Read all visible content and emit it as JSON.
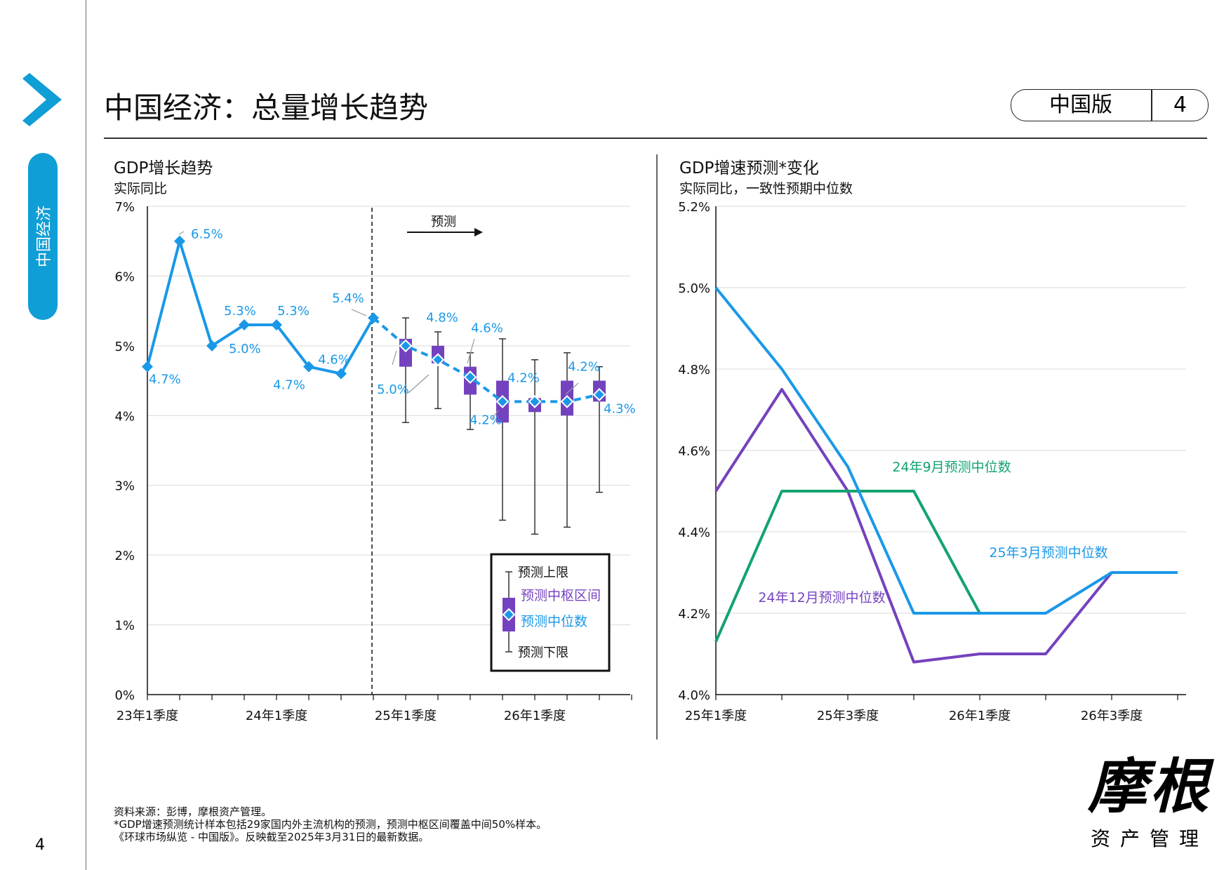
{
  "page": {
    "title": "中国经济：总量增长趋势",
    "section_tab": "中国经济",
    "edition": "中国版",
    "page_label": "4",
    "page_number": "4"
  },
  "footnotes": [
    "资料来源：彭博，摩根资产管理。",
    "*GDP增速预测统计样本包括29家国内外主流机构的预测，预测中枢区间覆盖中间50%样本。",
    "《环球市场纵览 - 中国版》。反映截至2025年3月31日的最新数据。"
  ],
  "logo": {
    "main": "摩根",
    "sub": "资产管理"
  },
  "colors": {
    "blue": "#1a98e8",
    "purple": "#7442be",
    "green": "#13a36f",
    "tab": "#0f9ed5"
  },
  "chart_data": [
    {
      "type": "line",
      "title": "GDP增长趋势",
      "subtitle": "实际同比",
      "x_tick_labels": [
        "23年1季度",
        "24年1季度",
        "25年1季度",
        "26年1季度"
      ],
      "y_tick_labels": [
        "0%",
        "1%",
        "2%",
        "3%",
        "4%",
        "5%",
        "6%",
        "7%"
      ],
      "ylim": [
        0,
        7
      ],
      "forecast_label": "预测",
      "actual": {
        "quarters": [
          "23Q1",
          "23Q2",
          "23Q3",
          "23Q4",
          "24Q1",
          "24Q2",
          "24Q3",
          "24Q4"
        ],
        "values": [
          4.7,
          6.5,
          5.0,
          5.3,
          5.3,
          4.7,
          4.6,
          5.4
        ],
        "labels": [
          "4.7%",
          "6.5%",
          "5.0%",
          "5.3%",
          "5.3%",
          "4.7%",
          "4.6%",
          "5.4%"
        ]
      },
      "forecast": {
        "quarters": [
          "25Q1",
          "25Q2",
          "25Q3",
          "25Q4",
          "26Q1",
          "26Q2",
          "26Q3"
        ],
        "median": [
          5.0,
          4.8,
          4.55,
          4.2,
          4.2,
          4.2,
          4.3
        ],
        "median_labels": [
          "5.0%",
          "4.8%",
          "4.6%",
          "4.2%",
          "4.2%",
          "4.2%",
          "4.3%"
        ],
        "upper": [
          5.4,
          5.2,
          4.9,
          5.1,
          4.8,
          4.9,
          4.7
        ],
        "lower": [
          3.9,
          4.1,
          3.8,
          2.5,
          2.3,
          2.4,
          2.9
        ],
        "iqr_high": [
          5.1,
          5.0,
          4.7,
          4.5,
          4.25,
          4.5,
          4.5
        ],
        "iqr_low": [
          4.7,
          4.75,
          4.3,
          3.9,
          4.05,
          4.0,
          4.2
        ]
      },
      "legend": {
        "upper": "预测上限",
        "iqr": "预测中枢区间",
        "median": "预测中位数",
        "lower": "预测下限"
      }
    },
    {
      "type": "line",
      "title": "GDP增速预测*变化",
      "subtitle": "实际同比，一致性预期中位数",
      "x_tick_labels": [
        "25年1季度",
        "25年3季度",
        "26年1季度",
        "26年3季度"
      ],
      "y_tick_labels": [
        "4.0%",
        "4.2%",
        "4.4%",
        "4.6%",
        "4.8%",
        "5.0%",
        "5.2%"
      ],
      "ylim": [
        4.0,
        5.2
      ],
      "x": [
        "25Q1",
        "25Q2",
        "25Q3",
        "25Q4",
        "26Q1",
        "26Q2",
        "26Q3",
        "26Q4"
      ],
      "series": [
        {
          "name": "25年3月预测中位数",
          "color": "#1a98e8",
          "values": [
            5.0,
            4.8,
            4.56,
            4.2,
            4.2,
            4.2,
            4.3,
            4.3
          ]
        },
        {
          "name": "24年9月预测中位数",
          "color": "#13a36f",
          "values": [
            4.13,
            4.5,
            4.5,
            4.5,
            4.2,
            null,
            null,
            null
          ]
        },
        {
          "name": "24年12月预测中位数",
          "color": "#7442be",
          "values": [
            4.5,
            4.75,
            4.5,
            4.08,
            4.1,
            4.1,
            4.3,
            null
          ]
        }
      ]
    }
  ]
}
